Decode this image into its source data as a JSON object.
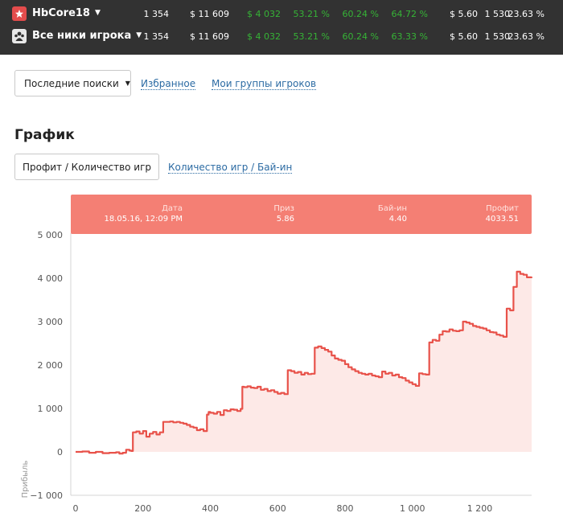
{
  "players": [
    {
      "name": "HbCore18",
      "icon": "pokerstars-icon",
      "games": "1 354",
      "buyins": "$ 11 609",
      "profit": "$ 4 032",
      "p1": "53.21 %",
      "p2": "60.24 %",
      "p3": "64.72 %",
      "avg": "$ 5.60",
      "n": "1 530",
      "roi": "23.63 %"
    },
    {
      "name": "Все ники игрока",
      "icon": "players-group-icon",
      "games": "1 354",
      "buyins": "$ 11 609",
      "profit": "$ 4 032",
      "p1": "53.21 %",
      "p2": "60.24 %",
      "p3": "63.33 %",
      "avg": "$ 5.60",
      "n": "1 530",
      "roi": "23.63 %"
    }
  ],
  "nav": {
    "recent_label": "Последние поиски",
    "favorites": "Избранное",
    "groups": "Мои группы игроков"
  },
  "section_title": "График",
  "tabs": {
    "active": "Профит / Количество игр",
    "other": "Количество игр / Бай-ин"
  },
  "tooltip": {
    "date_label": "Дата",
    "date_value": "18.05.16, 12:09 PM",
    "prize_label": "Приз",
    "prize_value": "5.86",
    "buyin_label": "Бай-ин",
    "buyin_value": "4.40",
    "profit_label": "Профит",
    "profit_value": "4033.51"
  },
  "colors": {
    "line": "#e8524a",
    "fill": "#fde9e7",
    "tooltip": "#f47f74",
    "positive": "#36b336"
  },
  "chart_data": {
    "type": "area",
    "ylabel": "Прибыль",
    "xlim": [
      0,
      1354
    ],
    "ylim": [
      -1000,
      5000
    ],
    "xticks": [
      0,
      200,
      400,
      600,
      800,
      1000,
      1200
    ],
    "xtick_labels": [
      "0",
      "200",
      "400",
      "600",
      "800",
      "1 000",
      "1 200"
    ],
    "yticks": [
      -1000,
      0,
      1000,
      2000,
      3000,
      4000,
      5000
    ],
    "ytick_labels": [
      "−1 000",
      "0",
      "1 000",
      "2 000",
      "3 000",
      "4 000",
      "5 000"
    ],
    "series": [
      {
        "x": [
          0,
          20,
          40,
          60,
          80,
          100,
          120,
          130,
          140,
          150,
          160,
          165,
          170,
          180,
          190,
          200,
          210,
          220,
          230,
          240,
          250,
          260,
          270,
          280,
          290,
          300,
          310,
          320,
          330,
          340,
          350,
          360,
          370,
          380,
          390,
          395,
          400,
          410,
          420,
          430,
          440,
          450,
          460,
          470,
          480,
          490,
          495,
          500,
          510,
          520,
          530,
          540,
          550,
          560,
          570,
          580,
          590,
          600,
          610,
          620,
          630,
          640,
          650,
          660,
          670,
          680,
          690,
          700,
          710,
          720,
          730,
          740,
          750,
          760,
          770,
          780,
          790,
          800,
          810,
          820,
          830,
          840,
          850,
          860,
          870,
          880,
          890,
          900,
          910,
          920,
          930,
          940,
          950,
          960,
          970,
          980,
          990,
          1000,
          1010,
          1020,
          1030,
          1040,
          1050,
          1060,
          1070,
          1080,
          1090,
          1100,
          1110,
          1120,
          1130,
          1140,
          1150,
          1160,
          1170,
          1180,
          1190,
          1200,
          1210,
          1220,
          1230,
          1240,
          1250,
          1260,
          1270,
          1280,
          1290,
          1300,
          1310,
          1320,
          1330,
          1340,
          1354
        ],
        "y": [
          0,
          10,
          -20,
          0,
          -30,
          -20,
          -10,
          -40,
          -20,
          50,
          30,
          20,
          450,
          470,
          420,
          480,
          350,
          420,
          460,
          400,
          450,
          690,
          690,
          700,
          680,
          690,
          670,
          650,
          620,
          580,
          560,
          500,
          520,
          480,
          860,
          920,
          900,
          880,
          920,
          850,
          960,
          940,
          980,
          970,
          940,
          990,
          1500,
          1490,
          1510,
          1480,
          1470,
          1500,
          1430,
          1450,
          1400,
          1420,
          1380,
          1340,
          1360,
          1330,
          1880,
          1860,
          1820,
          1840,
          1780,
          1820,
          1790,
          1800,
          2400,
          2430,
          2390,
          2350,
          2310,
          2220,
          2150,
          2120,
          2100,
          2020,
          1950,
          1900,
          1860,
          1820,
          1800,
          1780,
          1800,
          1760,
          1740,
          1720,
          1850,
          1800,
          1820,
          1760,
          1780,
          1720,
          1700,
          1640,
          1600,
          1560,
          1520,
          1810,
          1790,
          1780,
          2520,
          2580,
          2560,
          2700,
          2780,
          2770,
          2820,
          2790,
          2780,
          2800,
          3000,
          2980,
          2950,
          2900,
          2880,
          2860,
          2840,
          2800,
          2760,
          2750,
          2700,
          2680,
          2650,
          3300,
          3260,
          3800,
          4150,
          4100,
          4080,
          4020,
          4033
        ]
      }
    ]
  }
}
